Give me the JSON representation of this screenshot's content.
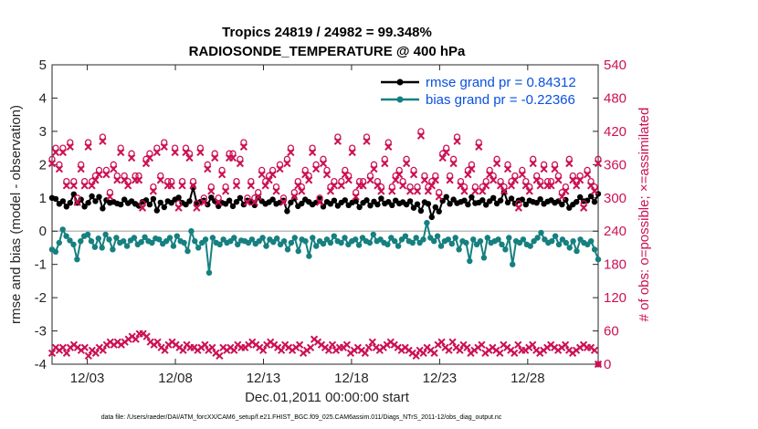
{
  "chart_data": {
    "type": "line",
    "title": "Tropics 24819 / 24982 = 99.348%",
    "subtitle": "RADIOSONDE_TEMPERATURE @ 400 hPa",
    "xlabel": "Dec.01,2011 00:00:00 start",
    "ylabel": "rmse and bias (model - observation)",
    "ylabel_right": "# of obs: o=possible; ×=assimilated",
    "xlim": [
      0,
      31
    ],
    "ylim": [
      -4,
      5
    ],
    "ylim_right": [
      0,
      540
    ],
    "x_ticks": [
      2,
      7,
      12,
      17,
      22,
      27
    ],
    "x_tick_labels": [
      "12/03",
      "12/08",
      "12/13",
      "12/18",
      "12/23",
      "12/28"
    ],
    "y_ticks": [
      -4,
      -3,
      -2,
      -1,
      0,
      1,
      2,
      3,
      4,
      5
    ],
    "y_ticks_right": [
      0,
      60,
      120,
      180,
      240,
      300,
      360,
      420,
      480,
      540
    ],
    "zero_line": 0,
    "legend_position": "top-right",
    "colors": {
      "rmse": "#000000",
      "bias": "#168080",
      "obs": "#cc1154",
      "legend_text": "#0a50e0"
    },
    "series": [
      {
        "name": "rmse grand pr = 0.84312",
        "key": "rmse",
        "values": [
          1.0,
          0.97,
          0.82,
          0.9,
          0.74,
          0.85,
          1.11,
          0.85,
          0.95,
          0.74,
          0.85,
          1.05,
          0.9,
          1.03,
          0.68,
          0.93,
          0.85,
          0.88,
          0.83,
          0.8,
          0.95,
          0.84,
          0.9,
          0.82,
          0.76,
          0.88,
          0.93,
          0.8,
          0.97,
          0.62,
          0.86,
          0.72,
          0.9,
          0.85,
          0.95,
          1.01,
          0.85,
          0.8,
          0.9,
          1.31,
          0.85,
          0.88,
          0.92,
          0.8,
          1.01,
          0.9,
          0.75,
          0.85,
          0.82,
          0.92,
          0.75,
          0.88,
          1.0,
          0.8,
          0.92,
          0.89,
          0.78,
          1.01,
          0.9,
          0.82,
          0.87,
          0.95,
          0.82,
          0.86,
          0.92,
          0.6,
          0.86,
          0.98,
          0.75,
          0.83,
          0.95,
          0.88,
          0.8,
          0.86,
          0.97,
          0.74,
          0.88,
          0.82,
          0.92,
          0.76,
          0.86,
          0.93,
          0.78,
          0.86,
          0.9,
          0.72,
          0.85,
          0.93,
          0.77,
          0.89,
          0.8,
          0.98,
          0.83,
          0.88,
          0.78,
          0.92,
          0.83,
          0.87,
          0.8,
          0.9,
          0.7,
          0.81,
          0.61,
          0.87,
          0.82,
          0.42,
          0.72,
          0.59,
          0.91,
          1.03,
          0.82,
          0.95,
          0.84,
          0.88,
          0.92,
          0.8,
          1.02,
          0.84,
          0.86,
          0.93,
          0.79,
          0.9,
          1.0,
          0.83,
          0.92,
          1.18,
          0.86,
          0.98,
          0.83,
          0.92,
          0.95,
          0.8,
          0.92,
          0.88,
          0.85,
          0.96,
          0.82,
          0.89,
          0.93,
          0.85,
          0.9,
          0.8,
          0.94,
          0.7,
          0.8,
          0.88,
          1.02,
          0.9,
          0.92,
          1.05,
          0.88,
          1.12
        ]
      },
      {
        "name": "bias grand pr = -0.22366",
        "key": "bias",
        "values": [
          -0.55,
          -0.62,
          -0.35,
          0.05,
          -0.15,
          -0.28,
          -0.4,
          -0.85,
          -0.3,
          -0.15,
          -0.1,
          -0.3,
          -0.48,
          -0.22,
          -0.5,
          -0.1,
          -0.25,
          -0.55,
          -0.2,
          -0.35,
          -0.3,
          -0.45,
          -0.28,
          -0.2,
          -0.4,
          -0.33,
          -0.18,
          -0.3,
          -0.35,
          -0.22,
          -0.25,
          -0.38,
          -0.3,
          -0.2,
          -0.45,
          -0.15,
          -0.3,
          -0.35,
          -0.6,
          0.0,
          -0.3,
          -0.5,
          -0.35,
          -0.25,
          -1.25,
          -0.2,
          -0.35,
          -0.4,
          -0.25,
          -0.35,
          -0.3,
          -0.2,
          -0.4,
          -0.28,
          -0.3,
          -0.35,
          -0.25,
          -0.38,
          -0.3,
          -0.2,
          -0.45,
          -0.25,
          -0.33,
          -0.22,
          -0.4,
          -0.3,
          -0.55,
          -0.35,
          -0.2,
          -0.6,
          -0.25,
          -0.3,
          -0.75,
          -0.2,
          -0.45,
          -0.3,
          -0.38,
          -0.25,
          -0.35,
          -0.15,
          -0.3,
          -0.35,
          -0.2,
          -0.4,
          -0.3,
          -0.25,
          -0.42,
          -0.2,
          -0.3,
          -0.35,
          -0.1,
          -0.3,
          -0.25,
          -0.35,
          -0.4,
          -0.2,
          -0.3,
          -0.45,
          -0.25,
          -0.15,
          -0.3,
          -0.35,
          -0.2,
          -0.35,
          -0.25,
          0.25,
          -0.2,
          -0.3,
          -0.15,
          -0.45,
          -0.3,
          -0.25,
          -0.38,
          -0.2,
          -0.55,
          -0.3,
          -0.35,
          -0.9,
          -0.25,
          -0.4,
          -0.3,
          -0.8,
          -0.2,
          -0.35,
          -0.3,
          -0.25,
          -0.4,
          -0.55,
          -0.2,
          -1.0,
          -0.3,
          -0.35,
          -0.25,
          -0.4,
          -0.45,
          -0.3,
          -0.2,
          -0.05,
          -0.25,
          -0.35,
          -0.3,
          -0.15,
          -0.4,
          -0.25,
          -0.35,
          -0.5,
          -0.3,
          -0.6,
          -0.25,
          -0.35,
          -0.4,
          -0.3,
          -0.55,
          -0.85
        ]
      },
      {
        "name": "obs possible (o)",
        "key": "possible",
        "axis": "right",
        "values": [
          370,
          390,
          360,
          390,
          330,
          400,
          330,
          300,
          360,
          330,
          400,
          330,
          340,
          350,
          410,
          350,
          310,
          360,
          340,
          390,
          340,
          330,
          380,
          340,
          340,
          290,
          370,
          380,
          320,
          390,
          340,
          400,
          330,
          330,
          390,
          290,
          330,
          390,
          380,
          330,
          290,
          390,
          300,
          360,
          320,
          380,
          300,
          350,
          320,
          380,
          380,
          330,
          370,
          400,
          300,
          330,
          300,
          310,
          350,
          330,
          340,
          350,
          320,
          360,
          300,
          370,
          390,
          310,
          330,
          320,
          350,
          340,
          390,
          360,
          300,
          370,
          350,
          320,
          330,
          410,
          330,
          350,
          340,
          390,
          310,
          330,
          330,
          410,
          340,
          360,
          330,
          320,
          370,
          400,
          320,
          340,
          350,
          330,
          370,
          320,
          350,
          320,
          420,
          340,
          320,
          330,
          340,
          310,
          380,
          390,
          340,
          370,
          410,
          330,
          320,
          350,
          360,
          320,
          400,
          320,
          330,
          350,
          340,
          370,
          330,
          320,
          360,
          330,
          340,
          290,
          350,
          330,
          320,
          370,
          340,
          330,
          360,
          330,
          330,
          360,
          340,
          310,
          320,
          370,
          340,
          330,
          340,
          290,
          350,
          330,
          320,
          370
        ]
      },
      {
        "name": "obs assimilated (×)",
        "key": "assimilated",
        "axis": "right",
        "values": [
          20,
          30,
          25,
          30,
          20,
          30,
          35,
          30,
          25,
          30,
          15,
          25,
          20,
          30,
          25,
          35,
          40,
          35,
          40,
          35,
          40,
          45,
          50,
          45,
          55,
          55,
          50,
          40,
          35,
          40,
          30,
          25,
          35,
          40,
          35,
          30,
          25,
          35,
          30,
          30,
          25,
          30,
          35,
          25,
          30,
          20,
          15,
          30,
          25,
          30,
          25,
          35,
          30,
          30,
          35,
          40,
          35,
          30,
          25,
          35,
          40,
          35,
          30,
          25,
          35,
          30,
          25,
          30,
          35,
          20,
          25,
          30,
          45,
          40,
          35,
          30,
          25,
          35,
          25,
          30,
          30,
          35,
          20,
          25,
          30,
          25,
          20,
          30,
          40,
          30,
          25,
          30,
          35,
          40,
          35,
          30,
          25,
          30,
          25,
          20,
          15,
          25,
          20,
          30,
          25,
          20,
          35,
          40,
          30,
          25,
          40,
          30,
          25,
          35,
          30,
          20,
          25,
          30,
          35,
          20,
          25,
          30,
          25,
          20,
          35,
          30,
          25,
          20,
          35,
          25,
          25,
          30,
          35,
          25,
          20,
          25,
          30,
          35,
          30,
          25,
          30,
          35,
          25,
          20,
          25,
          30,
          35,
          30,
          30,
          25,
          0
        ]
      }
    ]
  },
  "footnote": "data file: /Users/raeder/DAI/ATM_forcXX/CAM6_setup/f.e21.FHIST_BGC.f09_025.CAM6assim.011/Diags_NTrS_2011-12/obs_diag_output.nc"
}
